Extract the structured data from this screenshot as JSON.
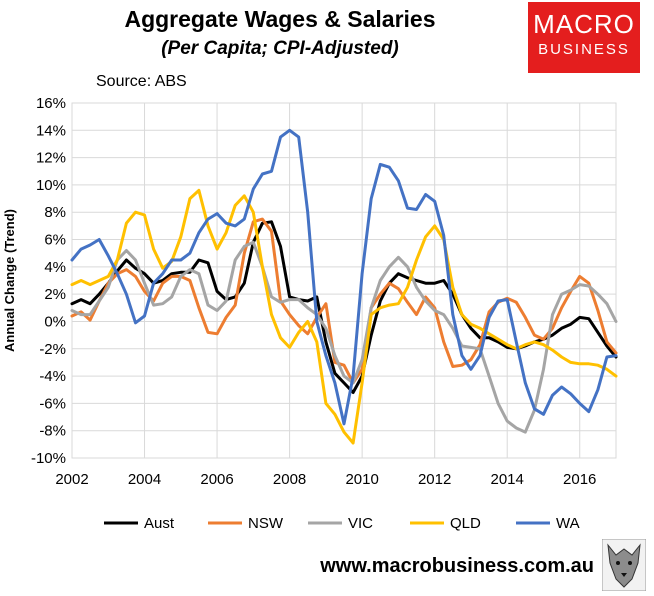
{
  "header": {
    "title": "Aggregate Wages & Salaries",
    "subtitle": "(Per Capita; CPI-Adjusted)",
    "source": "Source: ABS",
    "logo_line1": "MACRO",
    "logo_line2": "BUSINESS"
  },
  "footer": {
    "url": "www.macrobusiness.com.au"
  },
  "colors": {
    "logo_bg": "#e41e1e",
    "grid": "#d9d9d9"
  },
  "chart_data": {
    "type": "line",
    "title": "Aggregate Wages & Salaries",
    "subtitle": "(Per Capita; CPI-Adjusted)",
    "xlabel": "",
    "ylabel": "Annual Change (Trend)",
    "xlim": [
      2002,
      2017
    ],
    "ylim": [
      -10,
      16
    ],
    "grid": true,
    "legend": "bottom",
    "x_ticks": [
      "2002",
      "2004",
      "2006",
      "2008",
      "2010",
      "2012",
      "2014",
      "2016"
    ],
    "y_ticks": [
      "-10%",
      "-8%",
      "-6%",
      "-4%",
      "-2%",
      "0%",
      "2%",
      "4%",
      "6%",
      "8%",
      "10%",
      "12%",
      "14%",
      "16%"
    ],
    "series": [
      {
        "name": "Aust",
        "color": "#000000",
        "x": [
          2002.0,
          2002.25,
          2002.5,
          2002.75,
          2003.0,
          2003.25,
          2003.5,
          2003.75,
          2004.0,
          2004.25,
          2004.5,
          2004.75,
          2005.0,
          2005.25,
          2005.5,
          2005.75,
          2006.0,
          2006.25,
          2006.5,
          2006.75,
          2007.0,
          2007.25,
          2007.5,
          2007.75,
          2008.0,
          2008.25,
          2008.5,
          2008.75,
          2009.0,
          2009.25,
          2009.5,
          2009.75,
          2010.0,
          2010.25,
          2010.5,
          2010.75,
          2011.0,
          2011.25,
          2011.5,
          2011.75,
          2012.0,
          2012.25,
          2012.5,
          2012.75,
          2013.0,
          2013.25,
          2013.5,
          2013.75,
          2014.0,
          2014.25,
          2014.5,
          2014.75,
          2015.0,
          2015.25,
          2015.5,
          2015.75,
          2016.0,
          2016.25,
          2016.5,
          2016.75,
          2017.0
        ],
        "y": [
          1.3,
          1.6,
          1.3,
          2.0,
          2.8,
          3.7,
          4.5,
          3.9,
          3.5,
          2.8,
          3.0,
          3.5,
          3.6,
          3.6,
          4.5,
          4.3,
          2.2,
          1.6,
          1.8,
          2.8,
          5.8,
          7.2,
          7.3,
          5.5,
          1.8,
          1.6,
          1.5,
          1.8,
          -1.5,
          -3.8,
          -4.5,
          -5.2,
          -4.0,
          -1.0,
          1.5,
          2.8,
          3.5,
          3.2,
          3.0,
          2.8,
          2.8,
          3.0,
          2.0,
          0.5,
          -0.5,
          -1.2,
          -1.2,
          -1.5,
          -1.9,
          -2.0,
          -1.8,
          -1.5,
          -1.3,
          -1.0,
          -0.5,
          -0.2,
          0.3,
          0.2,
          -0.8,
          -1.8,
          -2.6
        ]
      },
      {
        "name": "NSW",
        "color": "#ed7d31",
        "x": [
          2002.0,
          2002.25,
          2002.5,
          2002.75,
          2003.0,
          2003.25,
          2003.5,
          2003.75,
          2004.0,
          2004.25,
          2004.5,
          2004.75,
          2005.0,
          2005.25,
          2005.5,
          2005.75,
          2006.0,
          2006.25,
          2006.5,
          2006.75,
          2007.0,
          2007.25,
          2007.5,
          2007.75,
          2008.0,
          2008.25,
          2008.5,
          2008.75,
          2009.0,
          2009.25,
          2009.5,
          2009.75,
          2010.0,
          2010.25,
          2010.5,
          2010.75,
          2011.0,
          2011.25,
          2011.5,
          2011.75,
          2012.0,
          2012.25,
          2012.5,
          2012.75,
          2013.0,
          2013.25,
          2013.5,
          2013.75,
          2014.0,
          2014.25,
          2014.5,
          2014.75,
          2015.0,
          2015.25,
          2015.5,
          2015.75,
          2016.0,
          2016.25,
          2016.5,
          2016.75,
          2017.0
        ],
        "y": [
          0.4,
          0.7,
          0.1,
          1.5,
          2.8,
          3.5,
          3.8,
          3.3,
          2.2,
          1.5,
          2.8,
          3.3,
          3.3,
          3.0,
          1.0,
          -0.8,
          -0.9,
          0.3,
          1.2,
          5.0,
          7.3,
          7.5,
          6.6,
          1.5,
          0.5,
          -0.3,
          -0.9,
          0.3,
          1.3,
          -3.0,
          -3.2,
          -4.5,
          -3.5,
          1.0,
          2.0,
          2.8,
          2.4,
          1.4,
          0.5,
          1.8,
          1.0,
          -1.5,
          -3.3,
          -3.2,
          -2.8,
          -1.7,
          0.7,
          1.4,
          1.7,
          1.4,
          0.3,
          -1.0,
          -1.3,
          -0.5,
          1.0,
          2.2,
          3.3,
          2.8,
          0.8,
          -1.5,
          -2.3
        ]
      },
      {
        "name": "VIC",
        "color": "#a5a5a5",
        "x": [
          2002.0,
          2002.25,
          2002.5,
          2002.75,
          2003.0,
          2003.25,
          2003.5,
          2003.75,
          2004.0,
          2004.25,
          2004.5,
          2004.75,
          2005.0,
          2005.25,
          2005.5,
          2005.75,
          2006.0,
          2006.25,
          2006.5,
          2006.75,
          2007.0,
          2007.25,
          2007.5,
          2007.75,
          2008.0,
          2008.25,
          2008.5,
          2008.75,
          2009.0,
          2009.25,
          2009.5,
          2009.75,
          2010.0,
          2010.25,
          2010.5,
          2010.75,
          2011.0,
          2011.25,
          2011.5,
          2011.75,
          2012.0,
          2012.25,
          2012.5,
          2012.75,
          2013.0,
          2013.25,
          2013.5,
          2013.75,
          2014.0,
          2014.25,
          2014.5,
          2014.75,
          2015.0,
          2015.25,
          2015.5,
          2015.75,
          2016.0,
          2016.25,
          2016.5,
          2016.75,
          2017.0
        ],
        "y": [
          0.8,
          0.5,
          0.5,
          1.5,
          2.5,
          4.5,
          5.2,
          4.5,
          2.8,
          1.2,
          1.3,
          1.8,
          3.3,
          3.8,
          3.5,
          1.2,
          0.8,
          1.5,
          4.5,
          5.5,
          5.8,
          4.0,
          1.8,
          1.4,
          1.6,
          1.6,
          1.0,
          0.5,
          -0.5,
          -2.5,
          -4.0,
          -4.5,
          -2.8,
          1.0,
          3.0,
          4.0,
          4.7,
          4.0,
          2.5,
          1.5,
          0.8,
          0.5,
          -0.5,
          -1.8,
          -1.9,
          -2.0,
          -4.0,
          -6.0,
          -7.3,
          -7.8,
          -8.1,
          -6.5,
          -3.5,
          0.5,
          2.0,
          2.3,
          2.7,
          2.6,
          2.0,
          1.3,
          0.0
        ]
      },
      {
        "name": "QLD",
        "color": "#ffc000",
        "x": [
          2002.0,
          2002.25,
          2002.5,
          2002.75,
          2003.0,
          2003.25,
          2003.5,
          2003.75,
          2004.0,
          2004.25,
          2004.5,
          2004.75,
          2005.0,
          2005.25,
          2005.5,
          2005.75,
          2006.0,
          2006.25,
          2006.5,
          2006.75,
          2007.0,
          2007.25,
          2007.5,
          2007.75,
          2008.0,
          2008.25,
          2008.5,
          2008.75,
          2009.0,
          2009.25,
          2009.5,
          2009.75,
          2010.0,
          2010.25,
          2010.5,
          2010.75,
          2011.0,
          2011.25,
          2011.5,
          2011.75,
          2012.0,
          2012.25,
          2012.5,
          2012.75,
          2013.0,
          2013.25,
          2013.5,
          2013.75,
          2014.0,
          2014.25,
          2014.5,
          2014.75,
          2015.0,
          2015.25,
          2015.5,
          2015.75,
          2016.0,
          2016.25,
          2016.5,
          2016.75,
          2017.0
        ],
        "y": [
          2.7,
          3.0,
          2.7,
          3.0,
          3.3,
          4.5,
          7.2,
          8.0,
          7.8,
          5.3,
          3.9,
          4.4,
          6.2,
          9.0,
          9.6,
          7.0,
          5.3,
          6.5,
          8.5,
          9.2,
          8.0,
          4.0,
          0.5,
          -1.2,
          -1.9,
          -0.8,
          0.0,
          -1.5,
          -6.0,
          -6.8,
          -8.1,
          -8.9,
          -4.5,
          0.5,
          1.0,
          1.2,
          1.3,
          2.5,
          4.5,
          6.2,
          7.0,
          6.0,
          2.5,
          0.5,
          -0.2,
          -0.5,
          -0.9,
          -1.3,
          -1.7,
          -2.0,
          -1.7,
          -1.5,
          -1.7,
          -2.1,
          -2.6,
          -3.0,
          -3.1,
          -3.1,
          -3.2,
          -3.5,
          -4.0
        ]
      },
      {
        "name": "WA",
        "color": "#4472c4",
        "x": [
          2002.0,
          2002.25,
          2002.5,
          2002.75,
          2003.0,
          2003.25,
          2003.5,
          2003.75,
          2004.0,
          2004.25,
          2004.5,
          2004.75,
          2005.0,
          2005.25,
          2005.5,
          2005.75,
          2006.0,
          2006.25,
          2006.5,
          2006.75,
          2007.0,
          2007.25,
          2007.5,
          2007.75,
          2008.0,
          2008.25,
          2008.5,
          2008.75,
          2009.0,
          2009.25,
          2009.5,
          2009.75,
          2010.0,
          2010.25,
          2010.5,
          2010.75,
          2011.0,
          2011.25,
          2011.5,
          2011.75,
          2012.0,
          2012.25,
          2012.5,
          2012.75,
          2013.0,
          2013.25,
          2013.5,
          2013.75,
          2014.0,
          2014.25,
          2014.5,
          2014.75,
          2015.0,
          2015.25,
          2015.5,
          2015.75,
          2016.0,
          2016.25,
          2016.5,
          2016.75,
          2017.0
        ],
        "y": [
          4.5,
          5.3,
          5.6,
          6.0,
          4.8,
          3.5,
          2.0,
          -0.1,
          0.4,
          2.8,
          3.5,
          4.5,
          4.5,
          5.0,
          6.5,
          7.5,
          7.9,
          7.2,
          7.0,
          7.5,
          9.7,
          10.8,
          11.0,
          13.5,
          14.0,
          13.5,
          8.0,
          0.0,
          -2.5,
          -4.5,
          -7.5,
          -4.0,
          3.5,
          9.0,
          11.5,
          11.3,
          10.3,
          8.3,
          8.2,
          9.3,
          8.8,
          6.3,
          0.5,
          -2.5,
          -3.5,
          -2.5,
          0.3,
          1.5,
          1.6,
          -1.5,
          -4.5,
          -6.4,
          -6.8,
          -5.4,
          -4.8,
          -5.3,
          -6.0,
          -6.6,
          -5.0,
          -2.6,
          -2.5
        ]
      }
    ]
  }
}
